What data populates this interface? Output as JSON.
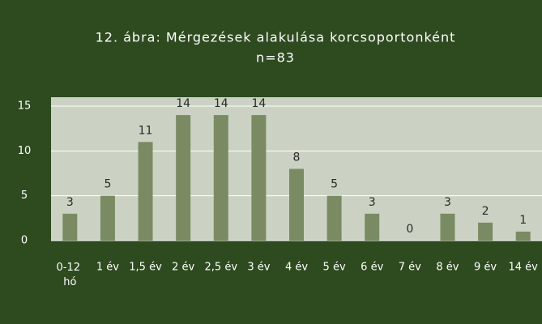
{
  "chart_data": {
    "type": "bar",
    "title": "12. ábra: Mérgezések alakulása korcsoportonként",
    "subtitle": "n=83",
    "categories": [
      "0-12 hó",
      "1 év",
      "1,5 év",
      "2 év",
      "2,5 év",
      "3 év",
      "4 év",
      "5 év",
      "6 év",
      "7 év",
      "8 év",
      "9 év",
      "14 év"
    ],
    "values": [
      3,
      5,
      11,
      14,
      14,
      14,
      8,
      5,
      3,
      0,
      3,
      2,
      1
    ],
    "color": "#7a8b63",
    "ylim": [
      0,
      15
    ],
    "yticks": [
      0,
      5,
      10,
      15
    ],
    "grid": true
  }
}
